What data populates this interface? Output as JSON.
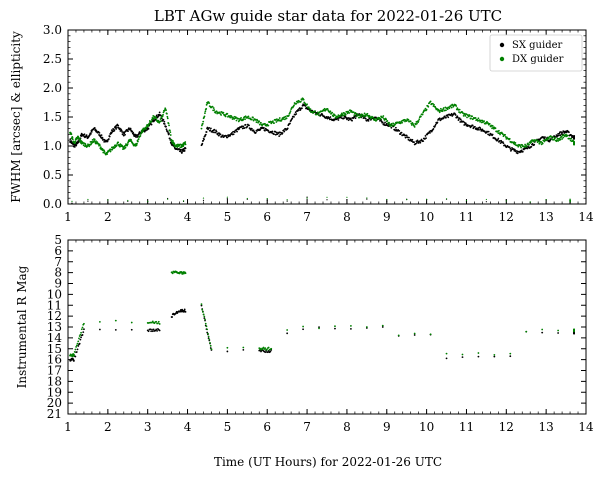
{
  "figure": {
    "title": "LBT AGw guide star data for 2022-01-26 UTC",
    "shared_xlabel": "Time (UT Hours) for 2022-01-26 UTC"
  },
  "colors": {
    "sx": "#000000",
    "dx": "#008000",
    "axes": "#000000"
  },
  "chart_data": [
    {
      "type": "scatter",
      "title": "LBT AGw guide star data for 2022-01-26 UTC",
      "xlabel": "",
      "ylabel": "FWHM [arcsec] & ellipticity",
      "xlim": [
        1,
        14
      ],
      "ylim": [
        0.0,
        3.0
      ],
      "xticks": [
        "1",
        "2",
        "3",
        "4",
        "5",
        "6",
        "7",
        "8",
        "9",
        "10",
        "11",
        "12",
        "13",
        "14"
      ],
      "yticks": [
        "0.0",
        "0.5",
        "1.0",
        "1.5",
        "2.0",
        "2.5",
        "3.0"
      ],
      "legend": {
        "position": "top-right",
        "entries": [
          "SX guider",
          "DX guider"
        ]
      },
      "series": [
        {
          "name": "SX guider",
          "color": "#000000",
          "x": [
            1.05,
            1.15,
            1.25,
            1.35,
            1.5,
            1.65,
            1.8,
            1.95,
            2.1,
            2.25,
            2.4,
            2.55,
            2.7,
            2.85,
            3.0,
            3.15,
            3.3,
            3.45,
            3.6,
            3.7,
            3.85,
            3.95,
            4.35,
            4.5,
            4.7,
            4.9,
            5.1,
            5.3,
            5.5,
            5.7,
            5.9,
            6.1,
            6.3,
            6.5,
            6.7,
            6.9,
            7.1,
            7.3,
            7.5,
            7.7,
            7.9,
            8.1,
            8.3,
            8.5,
            8.7,
            8.9,
            9.1,
            9.3,
            9.5,
            9.7,
            9.9,
            10.1,
            10.3,
            10.5,
            10.7,
            10.9,
            11.1,
            11.3,
            11.5,
            11.7,
            11.9,
            12.1,
            12.3,
            12.5,
            12.7,
            12.9,
            13.1,
            13.3,
            13.5,
            13.7
          ],
          "y": [
            1.1,
            1.0,
            1.05,
            1.2,
            1.15,
            1.3,
            1.2,
            1.05,
            1.25,
            1.35,
            1.2,
            1.3,
            1.15,
            1.25,
            1.3,
            1.45,
            1.55,
            1.35,
            1.05,
            0.95,
            0.9,
            0.95,
            1.0,
            1.3,
            1.25,
            1.15,
            1.2,
            1.3,
            1.35,
            1.25,
            1.3,
            1.25,
            1.2,
            1.3,
            1.55,
            1.7,
            1.6,
            1.55,
            1.5,
            1.45,
            1.5,
            1.45,
            1.55,
            1.45,
            1.5,
            1.4,
            1.35,
            1.25,
            1.15,
            1.05,
            1.1,
            1.25,
            1.45,
            1.5,
            1.55,
            1.4,
            1.35,
            1.3,
            1.25,
            1.15,
            1.05,
            0.95,
            0.9,
            0.95,
            1.05,
            1.15,
            1.1,
            1.2,
            1.25,
            1.15
          ]
        },
        {
          "name": "DX guider",
          "color": "#008000",
          "x": [
            1.05,
            1.15,
            1.25,
            1.35,
            1.5,
            1.65,
            1.8,
            1.95,
            2.1,
            2.25,
            2.4,
            2.55,
            2.7,
            2.85,
            3.0,
            3.15,
            3.3,
            3.45,
            3.6,
            3.7,
            3.85,
            3.95,
            4.35,
            4.5,
            4.7,
            4.9,
            5.1,
            5.3,
            5.5,
            5.7,
            5.9,
            6.1,
            6.3,
            6.5,
            6.7,
            6.9,
            7.1,
            7.3,
            7.5,
            7.7,
            7.9,
            8.1,
            8.3,
            8.5,
            8.7,
            8.9,
            9.1,
            9.3,
            9.5,
            9.7,
            9.9,
            10.1,
            10.3,
            10.5,
            10.7,
            10.9,
            11.1,
            11.3,
            11.5,
            11.7,
            11.9,
            12.1,
            12.3,
            12.5,
            12.7,
            12.9,
            13.1,
            13.3,
            13.5,
            13.7
          ],
          "y": [
            1.25,
            1.05,
            1.15,
            1.05,
            1.0,
            1.1,
            1.0,
            0.85,
            0.95,
            1.05,
            0.95,
            1.1,
            1.0,
            1.25,
            1.35,
            1.5,
            1.4,
            1.65,
            1.1,
            1.0,
            1.0,
            1.05,
            1.3,
            1.75,
            1.6,
            1.55,
            1.5,
            1.45,
            1.5,
            1.45,
            1.35,
            1.4,
            1.45,
            1.5,
            1.75,
            1.8,
            1.6,
            1.55,
            1.65,
            1.5,
            1.55,
            1.6,
            1.5,
            1.55,
            1.45,
            1.5,
            1.35,
            1.4,
            1.45,
            1.35,
            1.55,
            1.75,
            1.6,
            1.65,
            1.7,
            1.55,
            1.5,
            1.45,
            1.4,
            1.3,
            1.2,
            1.1,
            1.0,
            1.0,
            1.1,
            1.05,
            1.15,
            1.1,
            1.2,
            1.05
          ]
        },
        {
          "name": "",
          "color": "#000000",
          "x": [
            1.1,
            1.5,
            2.0,
            2.5,
            3.0,
            3.5,
            3.9,
            4.4,
            5.0,
            5.5,
            6.0,
            6.5,
            7.0,
            7.5,
            8.0,
            8.5,
            9.0,
            9.5,
            10.0,
            10.5,
            11.0,
            11.5,
            12.0,
            12.6,
            13.0,
            13.6
          ],
          "y": [
            0.03,
            0.04,
            0.03,
            0.05,
            0.04,
            0.08,
            0.05,
            0.06,
            0.1,
            0.09,
            0.07,
            0.06,
            0.1,
            0.08,
            0.07,
            0.06,
            0.05,
            0.06,
            0.07,
            0.06,
            0.05,
            0.06,
            0.05,
            0.04,
            0.05,
            0.04
          ]
        },
        {
          "name": "",
          "color": "#008000",
          "x": [
            1.1,
            1.5,
            2.0,
            2.5,
            3.0,
            3.5,
            3.9,
            4.4,
            5.0,
            5.5,
            6.0,
            6.5,
            7.0,
            7.5,
            8.0,
            8.5,
            9.0,
            9.5,
            10.0,
            10.5,
            11.0,
            11.5,
            12.0,
            12.6,
            13.0,
            13.6
          ],
          "y": [
            0.05,
            0.06,
            0.07,
            0.08,
            0.06,
            0.1,
            0.07,
            0.09,
            0.14,
            0.12,
            0.1,
            0.09,
            0.12,
            0.11,
            0.1,
            0.08,
            0.08,
            0.09,
            0.1,
            0.09,
            0.08,
            0.08,
            0.07,
            0.06,
            0.07,
            0.06
          ]
        }
      ]
    },
    {
      "type": "scatter",
      "title": "",
      "xlabel": "Time (UT Hours) for 2022-01-26 UTC",
      "ylabel": "Instrumental R Mag",
      "xlim": [
        1,
        14
      ],
      "ylim": [
        21,
        5
      ],
      "xticks": [
        "1",
        "2",
        "3",
        "4",
        "5",
        "6",
        "7",
        "8",
        "9",
        "10",
        "11",
        "12",
        "13",
        "14"
      ],
      "yticks": [
        "5",
        "6",
        "7",
        "8",
        "9",
        "10",
        "11",
        "12",
        "13",
        "14",
        "15",
        "16",
        "17",
        "18",
        "19",
        "20",
        "21"
      ],
      "series": [
        {
          "name": "SX guider",
          "color": "#000000",
          "x": [
            1.05,
            1.15,
            1.4,
            1.8,
            2.2,
            2.6,
            3.0,
            3.3,
            3.6,
            3.8,
            3.95,
            4.35,
            4.6,
            5.0,
            5.4,
            5.8,
            6.1,
            6.5,
            6.9,
            7.3,
            7.7,
            8.1,
            8.5,
            8.9,
            9.3,
            9.7,
            10.1,
            10.5,
            10.9,
            11.3,
            11.7,
            12.1,
            12.5,
            12.9,
            13.3,
            13.7
          ],
          "y": [
            16.0,
            16.0,
            13.3,
            13.3,
            13.3,
            13.3,
            13.3,
            13.3,
            12.0,
            11.5,
            11.5,
            11.0,
            15.2,
            15.2,
            15.2,
            15.2,
            15.2,
            13.5,
            13.1,
            13.1,
            13.1,
            13.1,
            13.1,
            13.1,
            13.8,
            13.8,
            13.8,
            15.8,
            15.8,
            15.8,
            15.8,
            15.8,
            13.5,
            13.5,
            13.5,
            13.5
          ]
        },
        {
          "name": "DX guider",
          "color": "#008000",
          "x": [
            1.05,
            1.15,
            1.4,
            1.8,
            2.2,
            2.6,
            3.0,
            3.3,
            3.6,
            3.8,
            3.95,
            4.35,
            4.6,
            5.0,
            5.4,
            5.8,
            6.1,
            6.5,
            6.9,
            7.3,
            7.7,
            8.1,
            8.5,
            8.9,
            9.3,
            9.7,
            10.1,
            10.5,
            10.9,
            11.3,
            11.7,
            12.1,
            12.5,
            12.9,
            13.3,
            13.7
          ],
          "y": [
            15.6,
            15.6,
            12.6,
            12.6,
            12.5,
            12.5,
            12.6,
            12.6,
            8.0,
            8.0,
            8.0,
            11.0,
            15.0,
            15.0,
            15.0,
            15.0,
            15.0,
            13.3,
            13.0,
            13.0,
            13.0,
            13.0,
            13.0,
            13.0,
            13.7,
            13.7,
            13.7,
            15.5,
            15.5,
            15.5,
            15.5,
            15.5,
            13.3,
            13.3,
            13.3,
            13.3
          ]
        }
      ]
    }
  ]
}
